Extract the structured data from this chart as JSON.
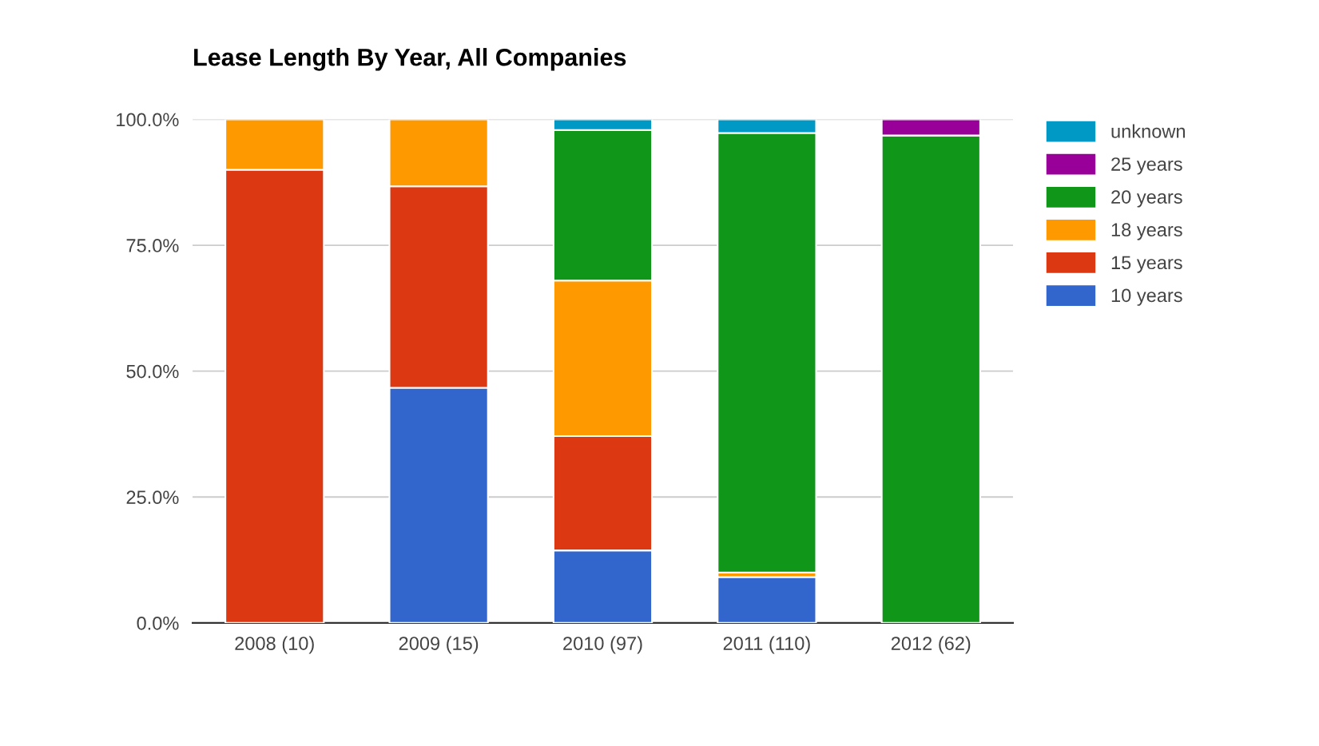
{
  "chart_data": {
    "type": "bar",
    "title": "Lease Length By Year, All Companies",
    "categories": [
      "2008 (10)",
      "2009 (15)",
      "2010 (97)",
      "2011 (110)",
      "2012 (62)"
    ],
    "stacked": true,
    "series": [
      {
        "name": "10 years",
        "color": "#3366cc",
        "values": [
          0,
          46.7,
          14.4,
          9.1,
          0
        ]
      },
      {
        "name": "15 years",
        "color": "#dc3912",
        "values": [
          90,
          40,
          22.7,
          0,
          0
        ]
      },
      {
        "name": "18 years",
        "color": "#ff9900",
        "values": [
          10,
          13.3,
          30.9,
          0.9,
          0
        ]
      },
      {
        "name": "20 years",
        "color": "#109618",
        "values": [
          0,
          0,
          29.9,
          87.3,
          96.8
        ]
      },
      {
        "name": "25 years",
        "color": "#990099",
        "values": [
          0,
          0,
          0,
          0,
          3.2
        ]
      },
      {
        "name": "unknown",
        "color": "#0099c6",
        "values": [
          0,
          0,
          2.1,
          2.7,
          0
        ]
      }
    ],
    "ylim": [
      0,
      100
    ],
    "yticks": [
      {
        "value": 0,
        "label": "0.0%"
      },
      {
        "value": 25,
        "label": "25.0%"
      },
      {
        "value": 50,
        "label": "50.0%"
      },
      {
        "value": 75,
        "label": "75.0%"
      },
      {
        "value": 100,
        "label": "100.0%"
      }
    ],
    "grid": "y",
    "legend": "right"
  }
}
